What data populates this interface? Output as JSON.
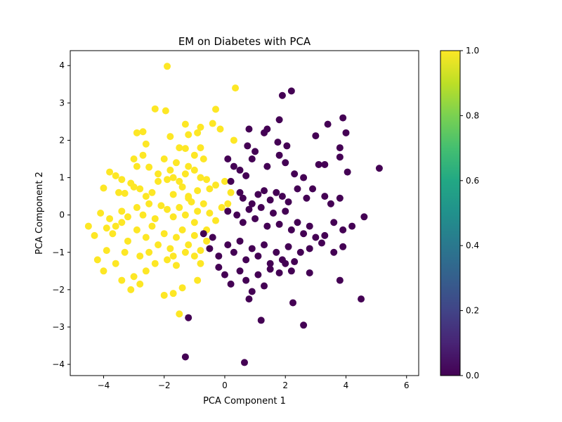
{
  "chart_data": {
    "type": "scatter",
    "title": "EM on Diabetes with PCA",
    "xlabel": "PCA Component 1",
    "ylabel": "PCA Component 2",
    "xlim": [
      -5.1,
      6.4
    ],
    "ylim": [
      -4.3,
      4.4
    ],
    "xticks": [
      -4,
      -2,
      0,
      2,
      4,
      6
    ],
    "xtick_labels": [
      "−4",
      "−2",
      "0",
      "2",
      "4",
      "6"
    ],
    "yticks": [
      -4,
      -3,
      -2,
      -1,
      0,
      1,
      2,
      3,
      4
    ],
    "ytick_labels": [
      "−4",
      "−3",
      "−2",
      "−1",
      "0",
      "1",
      "2",
      "3",
      "4"
    ],
    "grid": false,
    "colorbar": {
      "colormap": "viridis",
      "range": [
        0.0,
        1.0
      ],
      "ticks": [
        0.0,
        0.2,
        0.4,
        0.6,
        0.8,
        1.0
      ],
      "tick_labels": [
        "0.0",
        "0.2",
        "0.4",
        "0.6",
        "0.8",
        "1.0"
      ]
    },
    "colors": {
      "cluster_0": "#440154",
      "cluster_1": "#fde725"
    },
    "series": [
      {
        "label_value": 1,
        "points": [
          [
            -1.9,
            3.98
          ],
          [
            -2.9,
            2.2
          ],
          [
            -2.7,
            2.23
          ],
          [
            -2.3,
            2.84
          ],
          [
            -1.95,
            2.79
          ],
          [
            -2.6,
            1.9
          ],
          [
            -1.8,
            2.1
          ],
          [
            -1.3,
            2.43
          ],
          [
            -1.5,
            1.8
          ],
          [
            -1.2,
            2.15
          ],
          [
            -0.8,
            2.35
          ],
          [
            -0.9,
            2.2
          ],
          [
            -0.4,
            2.45
          ],
          [
            -0.3,
            2.83
          ],
          [
            -0.15,
            2.3
          ],
          [
            0.35,
            3.4
          ],
          [
            0.3,
            2.0
          ],
          [
            -2.7,
            1.6
          ],
          [
            -3.0,
            1.5
          ],
          [
            -2.9,
            1.3
          ],
          [
            -2.5,
            1.28
          ],
          [
            -2.0,
            1.5
          ],
          [
            -1.6,
            1.4
          ],
          [
            -1.3,
            1.78
          ],
          [
            -1.0,
            1.6
          ],
          [
            -0.8,
            1.8
          ],
          [
            -0.7,
            1.5
          ],
          [
            -1.2,
            1.3
          ],
          [
            -1.8,
            1.2
          ],
          [
            -2.2,
            1.1
          ],
          [
            -3.8,
            1.15
          ],
          [
            -3.6,
            1.05
          ],
          [
            -3.4,
            0.95
          ],
          [
            -3.1,
            0.85
          ],
          [
            -4.0,
            0.72
          ],
          [
            -3.5,
            0.6
          ],
          [
            -3.3,
            0.58
          ],
          [
            -3.0,
            0.75
          ],
          [
            -2.8,
            0.7
          ],
          [
            -2.4,
            0.6
          ],
          [
            -2.2,
            0.9
          ],
          [
            -1.9,
            0.95
          ],
          [
            -1.7,
            1.0
          ],
          [
            -1.5,
            0.9
          ],
          [
            -1.3,
            1.1
          ],
          [
            -1.0,
            1.2
          ],
          [
            -0.8,
            1.0
          ],
          [
            -0.6,
            0.95
          ],
          [
            -0.3,
            0.8
          ],
          [
            0.0,
            0.9
          ],
          [
            0.2,
            0.6
          ],
          [
            -0.5,
            0.7
          ],
          [
            -0.9,
            0.65
          ],
          [
            -1.2,
            0.5
          ],
          [
            -1.4,
            0.75
          ],
          [
            -1.7,
            0.55
          ],
          [
            -2.6,
            0.5
          ],
          [
            -4.1,
            0.05
          ],
          [
            -3.8,
            -0.1
          ],
          [
            -3.6,
            -0.3
          ],
          [
            -3.4,
            0.1
          ],
          [
            -3.2,
            -0.05
          ],
          [
            -2.9,
            0.2
          ],
          [
            -2.7,
            0.0
          ],
          [
            -2.5,
            0.3
          ],
          [
            -2.3,
            -0.1
          ],
          [
            -2.1,
            0.25
          ],
          [
            -1.9,
            0.15
          ],
          [
            -1.7,
            -0.05
          ],
          [
            -1.5,
            0.2
          ],
          [
            -1.3,
            0.0
          ],
          [
            -1.1,
            0.35
          ],
          [
            -0.9,
            0.1
          ],
          [
            -0.7,
            0.3
          ],
          [
            -0.5,
            0.05
          ],
          [
            -0.3,
            -0.15
          ],
          [
            -0.1,
            0.2
          ],
          [
            0.1,
            0.3
          ],
          [
            -0.6,
            -0.4
          ],
          [
            -1.0,
            -0.2
          ],
          [
            -1.2,
            0.45
          ],
          [
            -4.5,
            -0.3
          ],
          [
            -4.3,
            -0.55
          ],
          [
            -3.9,
            -0.35
          ],
          [
            -3.7,
            -0.5
          ],
          [
            -3.4,
            -0.2
          ],
          [
            -3.2,
            -0.7
          ],
          [
            -2.9,
            -0.4
          ],
          [
            -2.6,
            -0.6
          ],
          [
            -2.4,
            -0.3
          ],
          [
            -2.2,
            -0.8
          ],
          [
            -2.0,
            -0.5
          ],
          [
            -1.8,
            -0.9
          ],
          [
            -1.6,
            -0.6
          ],
          [
            -1.4,
            -0.4
          ],
          [
            -1.2,
            -0.8
          ],
          [
            -1.0,
            -0.55
          ],
          [
            -0.8,
            -0.95
          ],
          [
            -0.6,
            -0.7
          ],
          [
            -1.7,
            -1.1
          ],
          [
            -2.5,
            -1.0
          ],
          [
            -2.8,
            -1.1
          ],
          [
            -4.2,
            -1.2
          ],
          [
            -4.0,
            -1.5
          ],
          [
            -3.6,
            -1.3
          ],
          [
            -3.4,
            -1.75
          ],
          [
            -3.0,
            -1.65
          ],
          [
            -2.8,
            -1.85
          ],
          [
            -2.6,
            -1.5
          ],
          [
            -2.3,
            -1.3
          ],
          [
            -1.9,
            -1.2
          ],
          [
            -1.6,
            -1.35
          ],
          [
            -1.3,
            -1.0
          ],
          [
            -1.0,
            -1.1
          ],
          [
            -0.8,
            -1.3
          ],
          [
            -3.1,
            -2.0
          ],
          [
            -2.0,
            -2.15
          ],
          [
            -1.7,
            -2.1
          ],
          [
            -1.4,
            -1.95
          ],
          [
            -0.9,
            -1.75
          ],
          [
            -1.5,
            -2.65
          ],
          [
            -3.3,
            -1.0
          ],
          [
            -3.9,
            -0.95
          ]
        ]
      },
      {
        "label_value": 0,
        "points": [
          [
            2.2,
            3.32
          ],
          [
            1.9,
            3.2
          ],
          [
            1.8,
            2.55
          ],
          [
            3.4,
            2.43
          ],
          [
            3.9,
            2.6
          ],
          [
            4.0,
            2.2
          ],
          [
            3.0,
            2.12
          ],
          [
            0.8,
            2.3
          ],
          [
            1.3,
            2.2
          ],
          [
            1.4,
            2.3
          ],
          [
            1.75,
            1.95
          ],
          [
            2.05,
            1.85
          ],
          [
            3.8,
            1.8
          ],
          [
            0.75,
            1.85
          ],
          [
            0.1,
            1.5
          ],
          [
            0.3,
            1.3
          ],
          [
            0.5,
            1.2
          ],
          [
            0.7,
            1.05
          ],
          [
            0.9,
            1.5
          ],
          [
            1.0,
            1.7
          ],
          [
            1.4,
            1.3
          ],
          [
            1.8,
            1.6
          ],
          [
            2.0,
            1.4
          ],
          [
            2.3,
            1.1
          ],
          [
            2.6,
            1.0
          ],
          [
            3.1,
            1.35
          ],
          [
            3.3,
            1.35
          ],
          [
            3.8,
            1.55
          ],
          [
            4.05,
            1.15
          ],
          [
            5.1,
            1.25
          ],
          [
            0.2,
            0.9
          ],
          [
            0.5,
            0.6
          ],
          [
            0.6,
            0.45
          ],
          [
            0.9,
            0.3
          ],
          [
            1.1,
            0.55
          ],
          [
            1.3,
            0.65
          ],
          [
            1.5,
            0.4
          ],
          [
            1.7,
            0.6
          ],
          [
            1.9,
            0.5
          ],
          [
            2.1,
            0.35
          ],
          [
            2.4,
            0.7
          ],
          [
            2.7,
            0.45
          ],
          [
            2.9,
            0.7
          ],
          [
            3.3,
            0.5
          ],
          [
            3.5,
            0.3
          ],
          [
            3.8,
            0.45
          ],
          [
            0.1,
            0.1
          ],
          [
            0.4,
            0.0
          ],
          [
            0.6,
            -0.2
          ],
          [
            0.8,
            0.15
          ],
          [
            1.0,
            -0.1
          ],
          [
            1.2,
            0.2
          ],
          [
            1.4,
            -0.3
          ],
          [
            1.6,
            0.05
          ],
          [
            1.8,
            -0.25
          ],
          [
            2.0,
            0.1
          ],
          [
            2.2,
            -0.4
          ],
          [
            2.4,
            -0.2
          ],
          [
            2.6,
            -0.5
          ],
          [
            2.8,
            -0.3
          ],
          [
            3.0,
            -0.6
          ],
          [
            3.3,
            -0.55
          ],
          [
            3.6,
            -0.2
          ],
          [
            3.9,
            -0.4
          ],
          [
            4.2,
            -0.3
          ],
          [
            4.6,
            -0.05
          ],
          [
            -0.7,
            -0.5
          ],
          [
            -0.4,
            -0.6
          ],
          [
            -0.5,
            -0.9
          ],
          [
            -0.2,
            -1.1
          ],
          [
            0.1,
            -0.8
          ],
          [
            0.3,
            -1.0
          ],
          [
            0.5,
            -0.7
          ],
          [
            0.7,
            -1.2
          ],
          [
            0.9,
            -0.9
          ],
          [
            1.1,
            -1.1
          ],
          [
            1.3,
            -0.8
          ],
          [
            1.5,
            -1.3
          ],
          [
            1.7,
            -1.0
          ],
          [
            1.9,
            -1.2
          ],
          [
            2.1,
            -0.85
          ],
          [
            2.3,
            -1.25
          ],
          [
            2.5,
            -1.0
          ],
          [
            2.8,
            -0.9
          ],
          [
            3.2,
            -0.75
          ],
          [
            3.6,
            -1.0
          ],
          [
            3.9,
            -0.85
          ],
          [
            -0.2,
            -1.4
          ],
          [
            0.0,
            -1.6
          ],
          [
            0.2,
            -1.85
          ],
          [
            0.5,
            -1.5
          ],
          [
            0.7,
            -1.75
          ],
          [
            0.9,
            -2.05
          ],
          [
            1.1,
            -1.6
          ],
          [
            1.3,
            -1.9
          ],
          [
            1.5,
            -1.45
          ],
          [
            1.8,
            -1.55
          ],
          [
            2.0,
            -1.3
          ],
          [
            2.2,
            -1.5
          ],
          [
            2.8,
            -1.55
          ],
          [
            3.8,
            -1.75
          ],
          [
            0.8,
            -2.25
          ],
          [
            2.25,
            -2.35
          ],
          [
            4.5,
            -2.25
          ],
          [
            1.2,
            -2.82
          ],
          [
            2.6,
            -2.95
          ],
          [
            -1.2,
            -2.75
          ],
          [
            -1.3,
            -3.8
          ],
          [
            0.65,
            -3.95
          ]
        ]
      }
    ]
  }
}
